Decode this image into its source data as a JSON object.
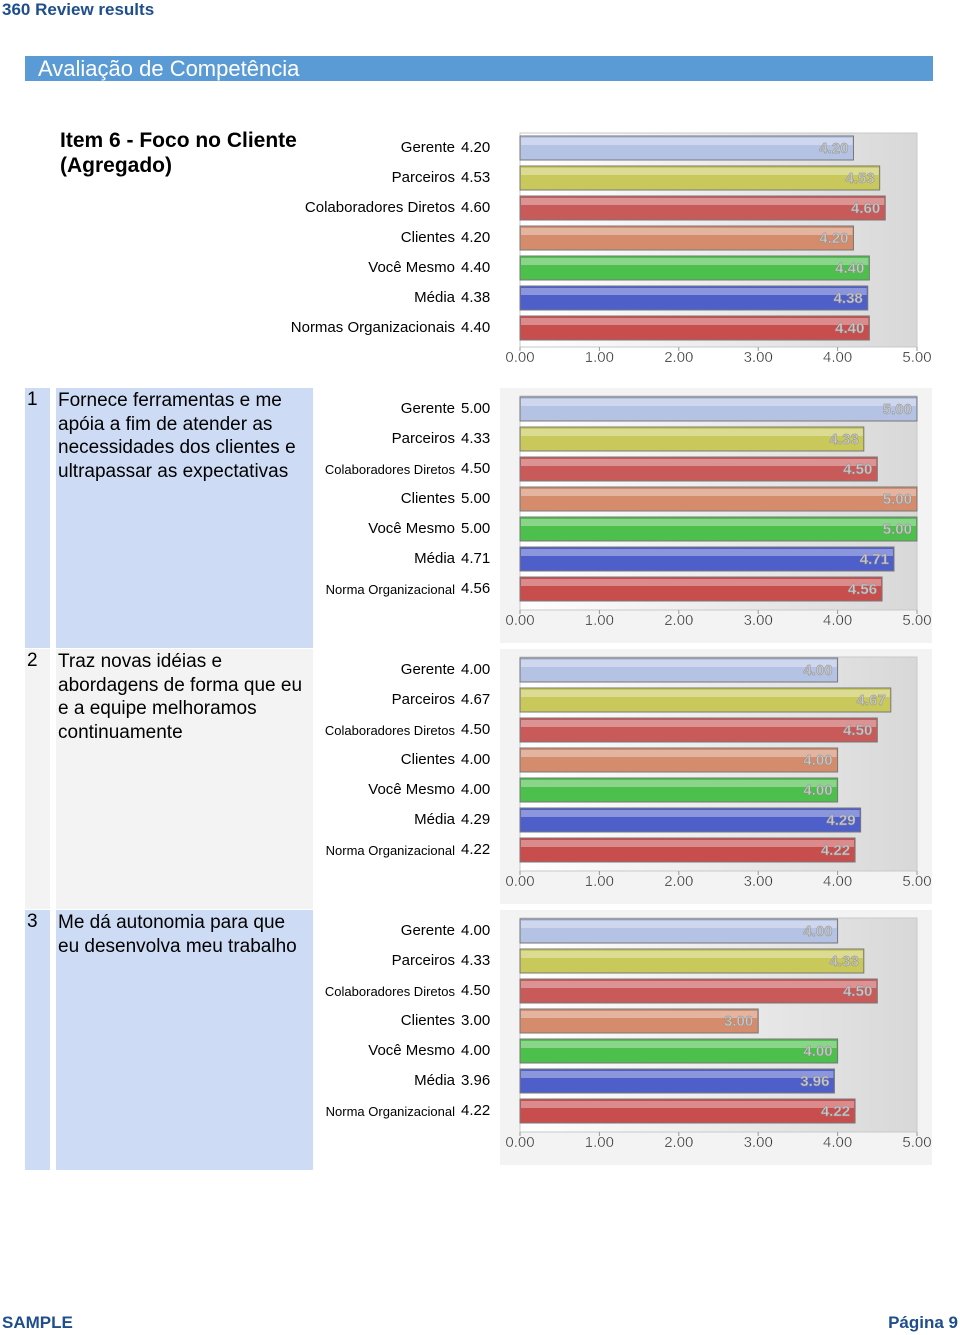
{
  "header": {
    "title": "360 Review results"
  },
  "section_title": "Avaliação de Competência",
  "chart_data": [
    {
      "type": "bar",
      "title": "Item 6 - Foco no Cliente (Agregado)",
      "categories": [
        "Gerente",
        "Parceiros",
        "Colaboradores Diretos",
        "Clientes",
        "Você Mesmo",
        "Média",
        "Normas Organizacionais"
      ],
      "values": [
        4.2,
        4.53,
        4.6,
        4.2,
        4.4,
        4.38,
        4.4
      ],
      "value_labels": [
        "4.20",
        "4.53",
        "4.60",
        "4.20",
        "4.40",
        "4.38",
        "4.40"
      ],
      "colors": [
        "#b4c2e4",
        "#c9c85a",
        "#c85a5a",
        "#d48c6c",
        "#4cbf4c",
        "#4f5fca",
        "#c84e4e"
      ],
      "xlim": [
        0,
        5
      ],
      "xticks": [
        {
          "value": 0,
          "label": "0.00"
        },
        {
          "value": 1,
          "label": "1.00"
        },
        {
          "value": 2,
          "label": "2.00"
        },
        {
          "value": 3,
          "label": "3.00"
        },
        {
          "value": 4,
          "label": "4.00"
        },
        {
          "value": 5,
          "label": "5.00"
        }
      ]
    },
    {
      "type": "bar",
      "number": "1",
      "title": "Fornece ferramentas e me apóia a fim de atender as necessidades dos clientes e ultrapassar as expectativas",
      "background": "#cddcf4",
      "categories": [
        "Gerente",
        "Parceiros",
        "Colaboradores Diretos",
        "Clientes",
        "Você Mesmo",
        "Média",
        "Norma Organizacional"
      ],
      "values": [
        5,
        4.33,
        4.5,
        5,
        5,
        4.71,
        4.56
      ],
      "value_labels": [
        "5.00",
        "4.33",
        "4.50",
        "5.00",
        "5.00",
        "4.71",
        "4.56"
      ],
      "colors": [
        "#b4c2e4",
        "#c9c85a",
        "#c85a5a",
        "#d48c6c",
        "#4cbf4c",
        "#4f5fca",
        "#c84e4e"
      ],
      "xlim": [
        0,
        5
      ],
      "xticks": [
        {
          "value": 0,
          "label": "0.00"
        },
        {
          "value": 1,
          "label": "1.00"
        },
        {
          "value": 2,
          "label": "2.00"
        },
        {
          "value": 3,
          "label": "3.00"
        },
        {
          "value": 4,
          "label": "4.00"
        },
        {
          "value": 5,
          "label": "5.00"
        }
      ]
    },
    {
      "type": "bar",
      "number": "2",
      "title": "Traz novas idéias e abordagens de forma que eu e a equipe melhoramos continuamente",
      "background": "#f3f3f3",
      "categories": [
        "Gerente",
        "Parceiros",
        "Colaboradores Diretos",
        "Clientes",
        "Você Mesmo",
        "Média",
        "Norma Organizacional"
      ],
      "values": [
        4,
        4.67,
        4.5,
        4,
        4,
        4.29,
        4.22
      ],
      "value_labels": [
        "4.00",
        "4.67",
        "4.50",
        "4.00",
        "4.00",
        "4.29",
        "4.22"
      ],
      "colors": [
        "#b4c2e4",
        "#c9c85a",
        "#c85a5a",
        "#d48c6c",
        "#4cbf4c",
        "#4f5fca",
        "#c84e4e"
      ],
      "xlim": [
        0,
        5
      ],
      "xticks": [
        {
          "value": 0,
          "label": "0.00"
        },
        {
          "value": 1,
          "label": "1.00"
        },
        {
          "value": 2,
          "label": "2.00"
        },
        {
          "value": 3,
          "label": "3.00"
        },
        {
          "value": 4,
          "label": "4.00"
        },
        {
          "value": 5,
          "label": "5.00"
        }
      ]
    },
    {
      "type": "bar",
      "number": "3",
      "title": "Me dá autonomia para que eu desenvolva meu trabalho",
      "background": "#cddcf4",
      "categories": [
        "Gerente",
        "Parceiros",
        "Colaboradores Diretos",
        "Clientes",
        "Você Mesmo",
        "Média",
        "Norma Organizacional"
      ],
      "values": [
        4,
        4.33,
        4.5,
        3,
        4,
        3.96,
        4.22
      ],
      "value_labels": [
        "4.00",
        "4.33",
        "4.50",
        "3.00",
        "4.00",
        "3.96",
        "4.22"
      ],
      "colors": [
        "#b4c2e4",
        "#c9c85a",
        "#c85a5a",
        "#d48c6c",
        "#4cbf4c",
        "#4f5fca",
        "#c84e4e"
      ],
      "xlim": [
        0,
        5
      ],
      "xticks": [
        {
          "value": 0,
          "label": "0.00"
        },
        {
          "value": 1,
          "label": "1.00"
        },
        {
          "value": 2,
          "label": "2.00"
        },
        {
          "value": 3,
          "label": "3.00"
        },
        {
          "value": 4,
          "label": "4.00"
        },
        {
          "value": 5,
          "label": "5.00"
        }
      ]
    }
  ],
  "footer": {
    "left": "SAMPLE",
    "right": "Página 9"
  }
}
